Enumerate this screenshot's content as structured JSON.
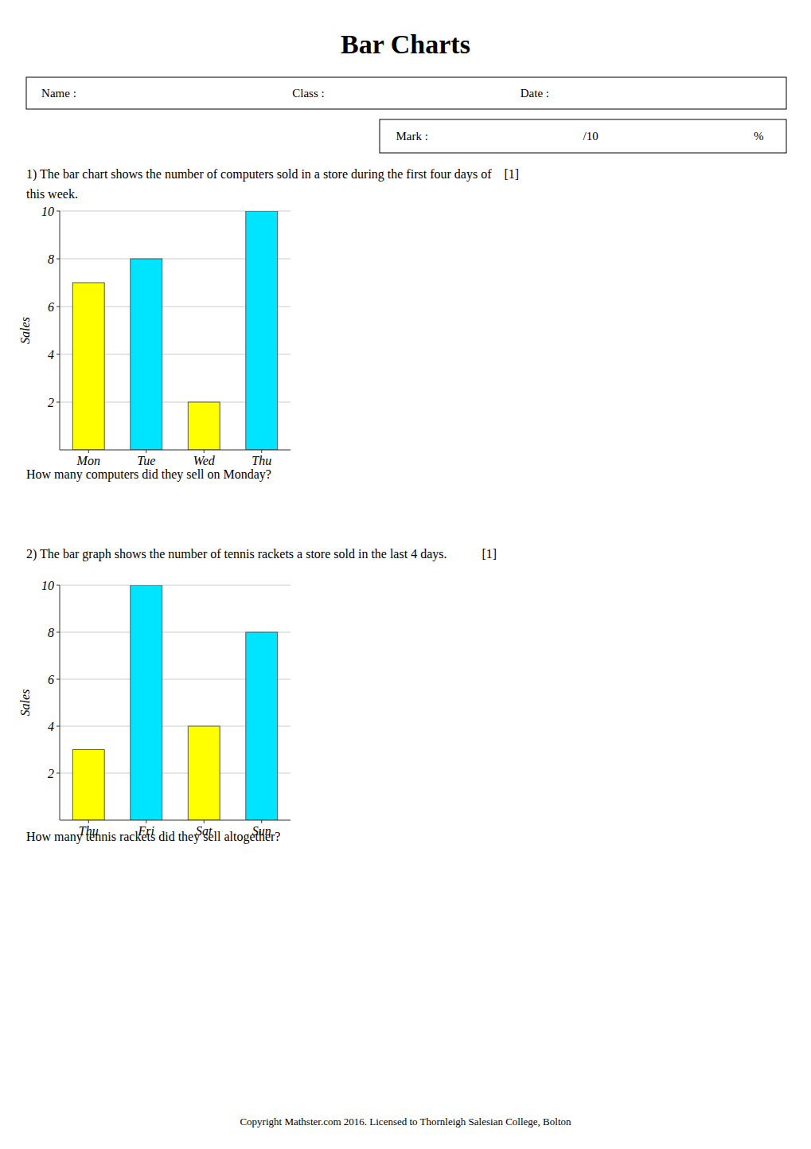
{
  "title": "Bar Charts",
  "annotations": [
    "Name :",
    "Class :",
    "Date :",
    "Mark :",
    "/10",
    "%",
    "Copyright Mathster.com 2016. Licensed to Thornleigh Salesian College, Bolton"
  ],
  "chart_data": [
    {
      "type": "bar",
      "title": "1) The bar chart shows the number of computers sold in a store during the first four days of    [1]",
      "subtitle": "this week.",
      "categories": [
        "Mon",
        "Tue",
        "Wed",
        "Thu"
      ],
      "values": [
        7,
        8,
        2,
        10
      ],
      "colors": [
        "#ffff00",
        "#00e5ff",
        "#ffff00",
        "#00e5ff"
      ],
      "ylabel": "Sales",
      "ylim": [
        0,
        10
      ],
      "yticks": [
        2,
        4,
        6,
        8,
        10
      ],
      "grid": true,
      "annotations": [
        "How many computers did they sell on Monday?"
      ]
    },
    {
      "type": "bar",
      "title": "2) The bar graph shows the number of tennis rackets a store sold in the last 4 days.           [1]",
      "categories": [
        "Thu",
        "Fri",
        "Sat",
        "Sun"
      ],
      "values": [
        3,
        10,
        4,
        8
      ],
      "colors": [
        "#ffff00",
        "#00e5ff",
        "#ffff00",
        "#00e5ff"
      ],
      "ylabel": "Sales",
      "ylim": [
        0,
        10
      ],
      "yticks": [
        2,
        4,
        6,
        8,
        10
      ],
      "grid": true,
      "annotations": [
        "How many tennis rackets did they sell altogether?"
      ]
    }
  ]
}
